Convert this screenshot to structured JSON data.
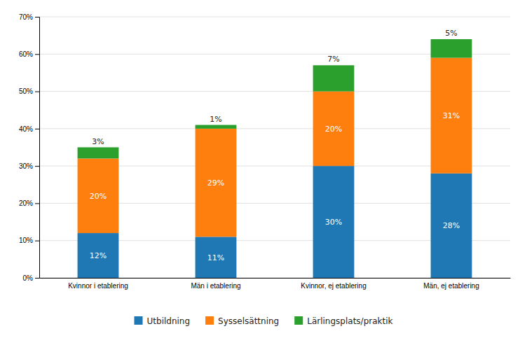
{
  "chart_data": {
    "type": "bar",
    "stacked": true,
    "categories": [
      "Kvinnor i etablering",
      "Män i etablering",
      "Kvinnor, ej etablering",
      "Män, ej etablering"
    ],
    "series": [
      {
        "name": "Utbildning",
        "values": [
          12,
          11,
          30,
          28
        ],
        "value_labels": [
          "12%",
          "11%",
          "30%",
          "28%"
        ]
      },
      {
        "name": "Sysselsättning",
        "values": [
          20,
          29,
          20,
          31
        ],
        "value_labels": [
          "20%",
          "29%",
          "20%",
          "31%"
        ]
      },
      {
        "name": "Lärlingsplats/praktik",
        "values": [
          3,
          1,
          7,
          5
        ],
        "value_labels": [
          "3%",
          "1%",
          "7%",
          "5%"
        ]
      }
    ],
    "ylim": [
      0,
      70
    ],
    "yticks": [
      {
        "value": 0,
        "label": "0%"
      },
      {
        "value": 10,
        "label": "10%"
      },
      {
        "value": 20,
        "label": "20%"
      },
      {
        "value": 30,
        "label": "30%"
      },
      {
        "value": 40,
        "label": "40%"
      },
      {
        "value": 50,
        "label": "50%"
      },
      {
        "value": 60,
        "label": "60%"
      },
      {
        "value": 70,
        "label": "70%"
      }
    ],
    "grid": true,
    "data_labels": true,
    "legend": "bottom"
  }
}
